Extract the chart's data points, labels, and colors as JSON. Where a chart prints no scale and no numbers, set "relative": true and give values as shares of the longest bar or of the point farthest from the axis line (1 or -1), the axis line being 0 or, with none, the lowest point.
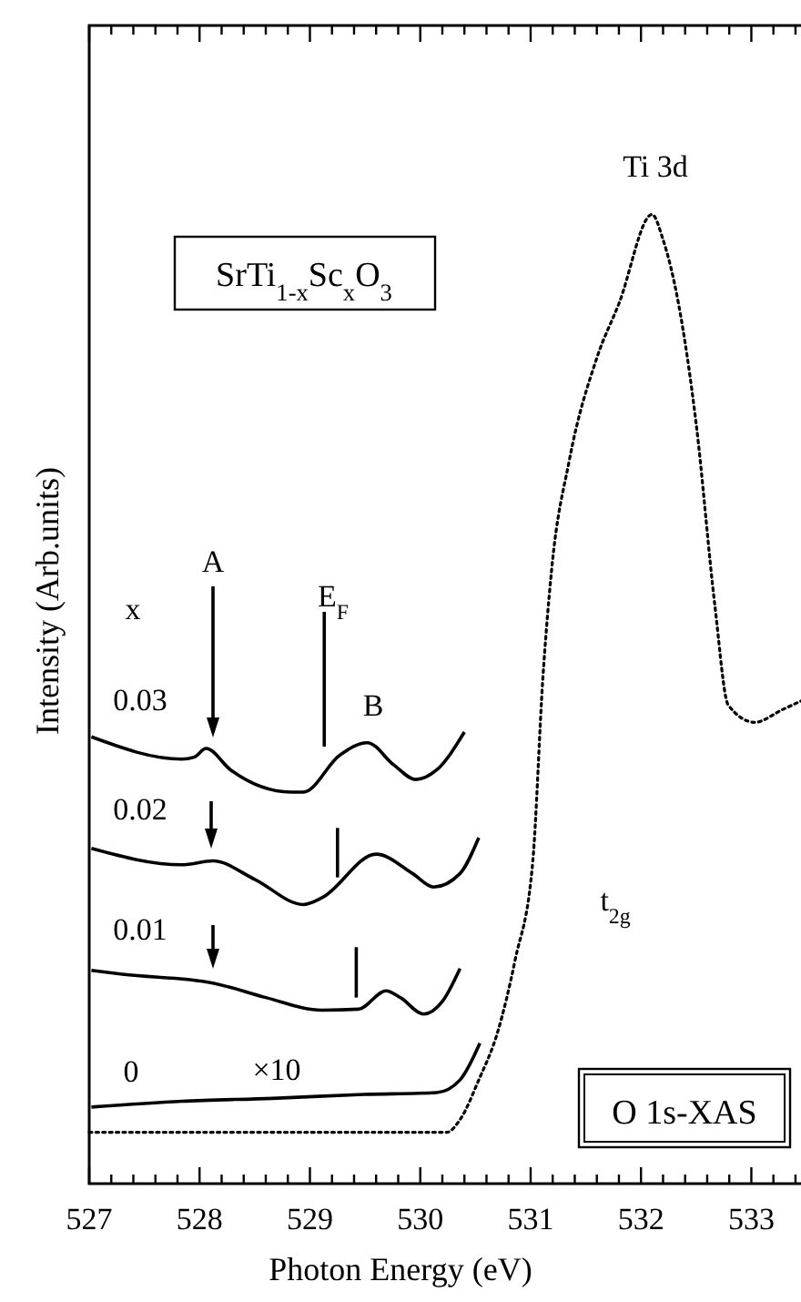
{
  "chart_data": {
    "type": "line",
    "relative": true,
    "xlabel": "Photon Energy (eV)",
    "ylabel": "Intensity (Arb.units)",
    "xlim": [
      527,
      533.45
    ],
    "legend": "left",
    "xticks": [
      527,
      {
        "value": 527.2,
        "label": null
      },
      {
        "value": 527.4,
        "label": null
      },
      {
        "value": 527.6,
        "label": null
      },
      {
        "value": 527.8,
        "label": null
      },
      528,
      {
        "value": 528.2,
        "label": null
      },
      {
        "value": 528.4,
        "label": null
      },
      {
        "value": 528.6,
        "label": null
      },
      {
        "value": 528.8,
        "label": null
      },
      529,
      {
        "value": 529.2,
        "label": null
      },
      {
        "value": 529.4,
        "label": null
      },
      {
        "value": 529.6,
        "label": null
      },
      {
        "value": 529.8,
        "label": null
      },
      530,
      {
        "value": 530.2,
        "label": null
      },
      {
        "value": 530.4,
        "label": null
      },
      {
        "value": 530.6,
        "label": null
      },
      {
        "value": 530.8,
        "label": null
      },
      531,
      {
        "value": 531.2,
        "label": null
      },
      {
        "value": 531.4,
        "label": null
      },
      {
        "value": 531.6,
        "label": null
      },
      {
        "value": 531.8,
        "label": null
      },
      532,
      {
        "value": 532.2,
        "label": null
      },
      {
        "value": 532.4,
        "label": null
      },
      {
        "value": 532.6,
        "label": null
      },
      {
        "value": 532.8,
        "label": null
      },
      533,
      {
        "value": 533.2,
        "label": null
      },
      {
        "value": 533.4,
        "label": null
      }
    ],
    "annotations": [
      "Ti 3d",
      "SrTi$_{1-x}$Sc$_{x}$O$_{3}$",
      "x",
      "A",
      "E$_{F}$",
      "B",
      "×10",
      "t$_{2g}$",
      "O 1s-XAS"
    ],
    "series": [
      {
        "color": "#000000",
        "line_style": "dotted",
        "x": [
          527.0,
          530.24,
          530.36,
          530.53,
          530.7,
          530.86,
          531.02,
          531.11,
          531.19,
          531.35,
          531.6,
          531.8,
          532.1,
          532.2,
          532.34,
          532.5,
          532.67,
          532.79,
          533.03,
          533.28,
          533.45
        ],
        "values": [
          0.053,
          0.053,
          0.066,
          0.107,
          0.156,
          0.231,
          0.333,
          0.52,
          0.633,
          0.746,
          0.852,
          0.908,
          1.0,
          0.974,
          0.908,
          0.784,
          0.596,
          0.494,
          0.476,
          0.489,
          0.498
        ]
      },
      {
        "name": "0.03",
        "color": "#000000",
        "line_style": "solid",
        "x": [
          527.02,
          527.84,
          527.95,
          528.06,
          528.28,
          528.83,
          528.94,
          529.27,
          529.52,
          529.76,
          529.96,
          530.15,
          530.4
        ],
        "values": [
          0.461,
          0.438,
          0.44,
          0.449,
          0.427,
          0.404,
          0.404,
          0.442,
          0.455,
          0.432,
          0.417,
          0.427,
          0.466
        ]
      },
      {
        "name": "0.02",
        "color": "#000000",
        "line_style": "solid",
        "x": [
          527.02,
          527.84,
          528.12,
          528.5,
          528.94,
          529.11,
          529.6,
          529.93,
          530.12,
          530.36,
          530.53
        ],
        "values": [
          0.346,
          0.329,
          0.333,
          0.314,
          0.288,
          0.295,
          0.34,
          0.32,
          0.306,
          0.32,
          0.357
        ]
      },
      {
        "name": "0.01",
        "color": "#000000",
        "line_style": "solid",
        "x": [
          527.02,
          527.3,
          528.12,
          528.6,
          529.11,
          529.44,
          529.69,
          529.82,
          530.03,
          530.2,
          530.36
        ],
        "values": [
          0.22,
          0.216,
          0.207,
          0.192,
          0.179,
          0.18,
          0.199,
          0.192,
          0.175,
          0.188,
          0.222
        ]
      },
      {
        "name": "0",
        "color": "#000000",
        "line_style": "solid",
        "x": [
          527.02,
          527.84,
          528.66,
          529.49,
          530.15,
          530.36,
          530.54
        ],
        "values": [
          0.079,
          0.085,
          0.088,
          0.092,
          0.094,
          0.107,
          0.145
        ]
      },
      {
        "color": "#000000",
        "line_style": "solid",
        "x": [
          529.13,
          529.13
        ],
        "values": [
          0.59,
          0.451
        ]
      },
      {
        "color": "#000000",
        "line_style": "solid",
        "x": [
          529.25,
          529.25
        ],
        "values": [
          0.367,
          0.316
        ]
      },
      {
        "color": "#000000",
        "line_style": "solid",
        "x": [
          529.42,
          529.42
        ],
        "values": [
          0.244,
          0.192
        ]
      }
    ]
  }
}
